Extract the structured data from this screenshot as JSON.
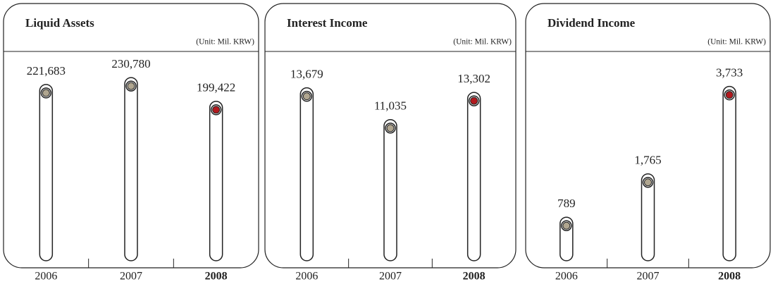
{
  "chart_data": [
    {
      "type": "bar",
      "title": "Liquid Assets",
      "subtitle": "(Unit: Mil. KRW)",
      "categories": [
        "2006",
        "2007",
        "2008"
      ],
      "values": [
        221683,
        230780,
        199422
      ],
      "value_labels": [
        "221,683",
        "230,780",
        "199,422"
      ],
      "colors": [
        "#b0a690",
        "#b0a690",
        "#b3191e"
      ],
      "category_colors": [
        "#222222",
        "#222222",
        "#7b3a3a"
      ],
      "ylim": [
        0,
        270000
      ]
    },
    {
      "type": "bar",
      "title": "Interest Income",
      "subtitle": "(Unit: Mil. KRW)",
      "categories": [
        "2006",
        "2007",
        "2008"
      ],
      "values": [
        13679,
        11035,
        13302
      ],
      "value_labels": [
        "13,679",
        "11,035",
        "13,302"
      ],
      "colors": [
        "#b0a690",
        "#b0a690",
        "#b3191e"
      ],
      "category_colors": [
        "#222222",
        "#222222",
        "#7b3a3a"
      ],
      "ylim": [
        0,
        17000
      ]
    },
    {
      "type": "bar",
      "title": "Dividend Income",
      "subtitle": "(Unit: Mil. KRW)",
      "categories": [
        "2006",
        "2007",
        "2008"
      ],
      "values": [
        789,
        1765,
        3733
      ],
      "value_labels": [
        "789",
        "1,765",
        "3,733"
      ],
      "colors": [
        "#b0a690",
        "#b0a690",
        "#b3191e"
      ],
      "category_colors": [
        "#222222",
        "#222222",
        "#7b3a3a"
      ],
      "ylim": [
        0,
        4600
      ]
    }
  ]
}
